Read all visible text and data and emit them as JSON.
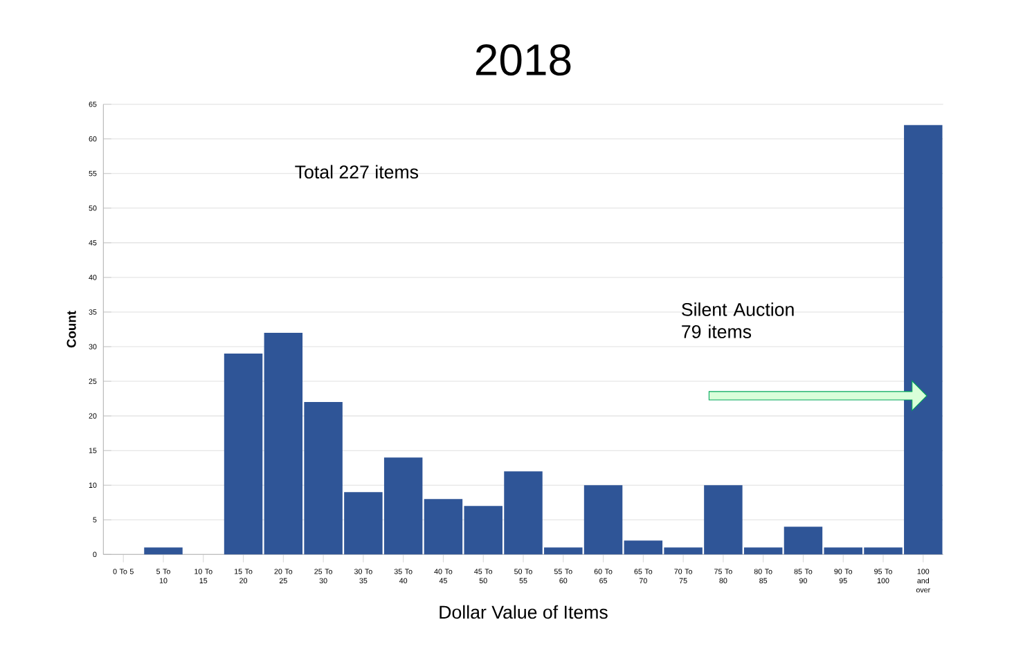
{
  "chart_data": {
    "type": "bar",
    "title": "2018",
    "xlabel": "Dollar Value of Items",
    "ylabel": "Count",
    "categories": [
      "0 To 5",
      "5 To 10",
      "10 To 15",
      "15 To 20",
      "20 To 25",
      "25 To 30",
      "30 To 35",
      "35 To 40",
      "40 To 45",
      "45 To 50",
      "50 To 55",
      "55 To 60",
      "60 To 65",
      "65 To 70",
      "70 To 75",
      "75 To 80",
      "80 To 85",
      "85 To 90",
      "90 To 95",
      "95 To 100",
      "100 and over"
    ],
    "values": [
      0,
      1,
      0,
      29,
      32,
      22,
      9,
      14,
      8,
      7,
      12,
      1,
      10,
      2,
      1,
      10,
      1,
      4,
      1,
      1,
      62
    ],
    "color": "#2f5597",
    "ylim": [
      0,
      65
    ],
    "yticks": [
      0,
      5,
      10,
      15,
      20,
      25,
      30,
      35,
      40,
      45,
      50,
      55,
      60,
      65
    ],
    "grid": "y",
    "annotations": [
      "Total 227 items",
      "Silent Auction 79 items"
    ]
  }
}
